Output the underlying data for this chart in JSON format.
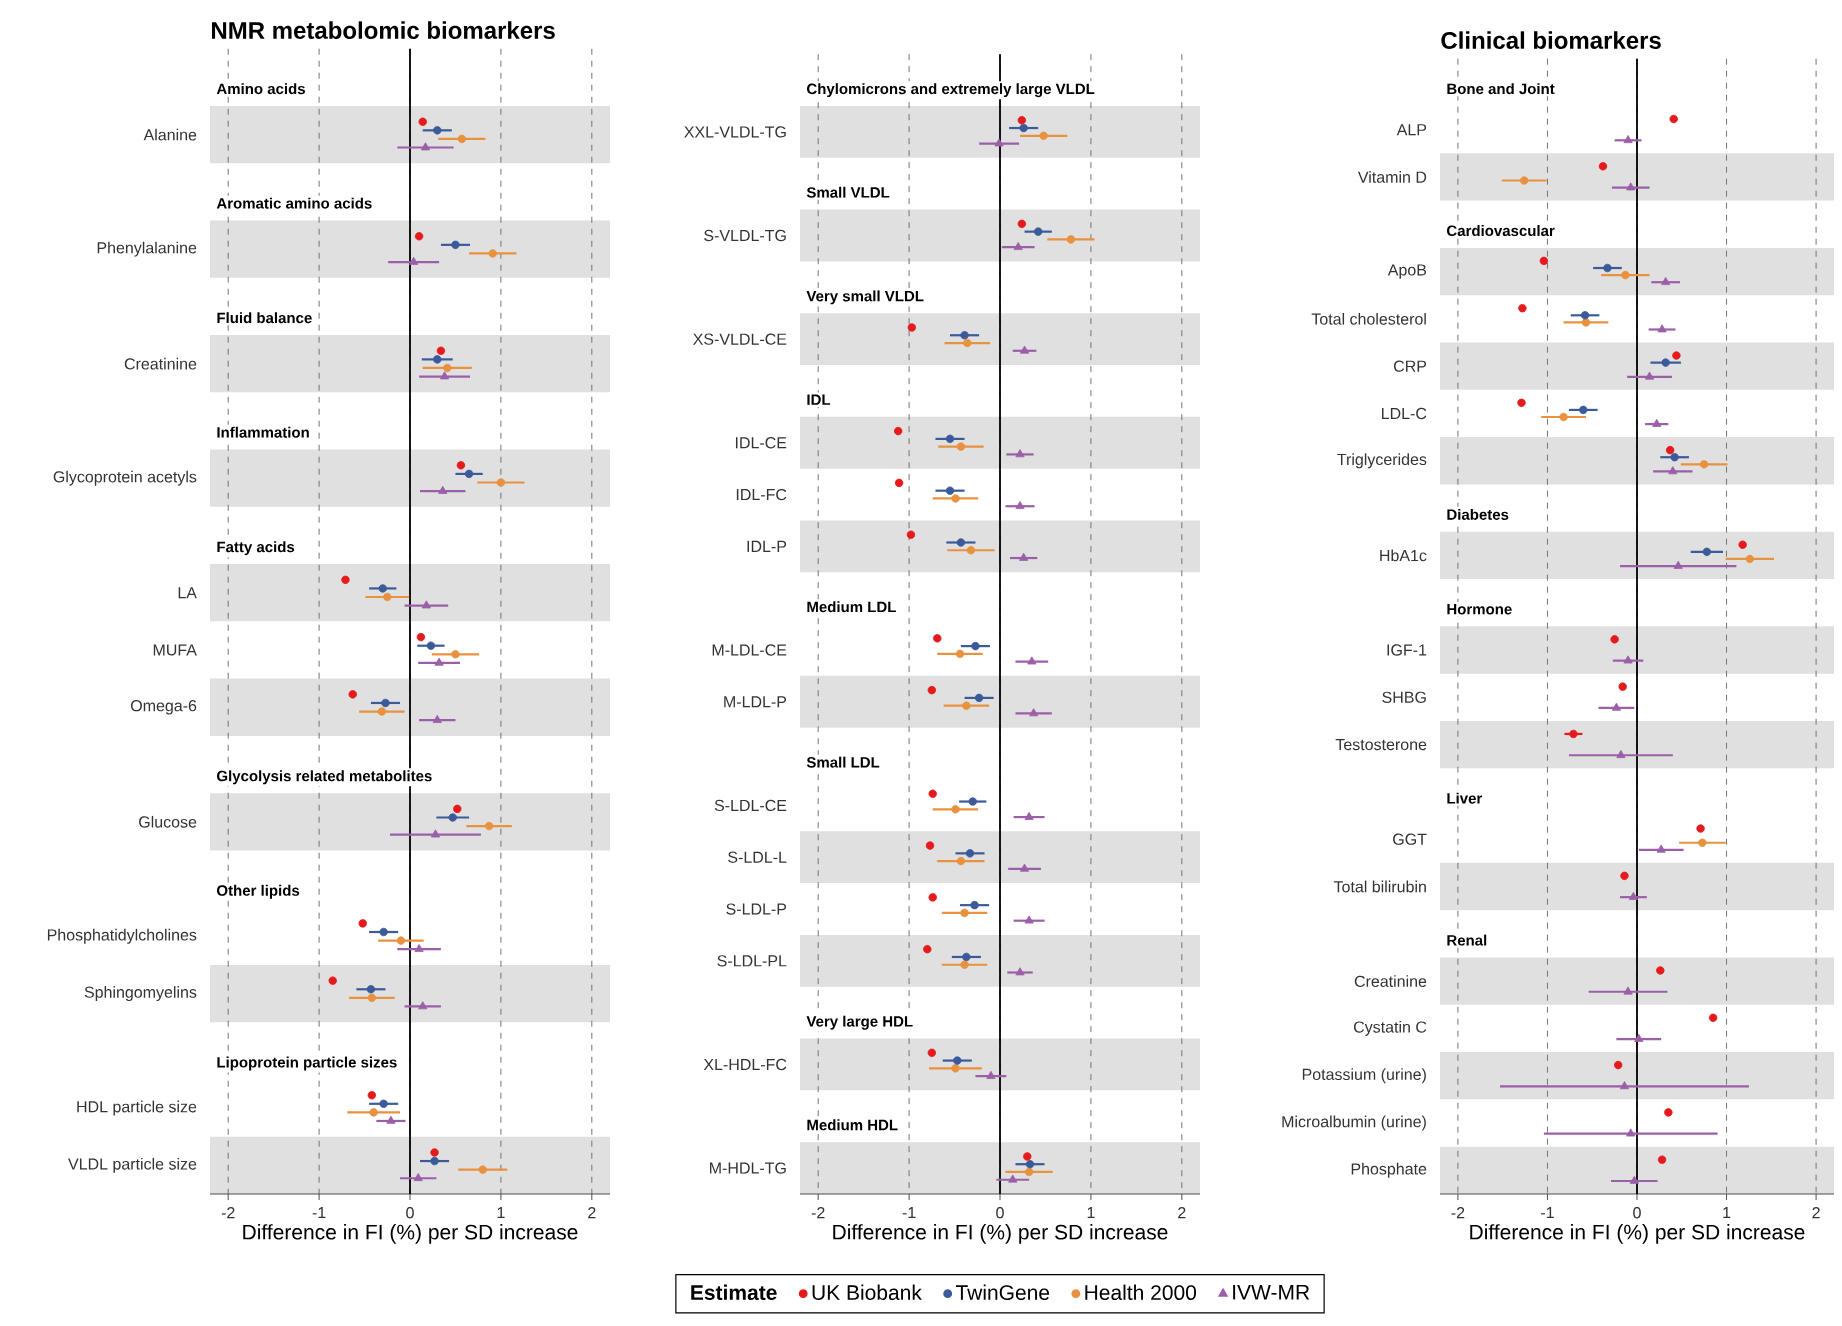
{
  "chart_data": [
    {
      "type": "scatter",
      "title": "NMR metabolomic biomarkers",
      "orientation": "horizontal",
      "categories": [
        null,
        "Alanine",
        null,
        "Phenylalanine",
        null,
        "Creatinine",
        null,
        "Glycoprotein acetyls",
        null,
        "LA",
        "MUFA",
        "Omega-6",
        null,
        "Glucose",
        null,
        "Phosphatidylcholines",
        "Sphingomyelins",
        null,
        "HDL particle size",
        "VLDL particle size"
      ],
      "annotations": [
        "Amino acids",
        "Aromatic amino acids",
        "Fluid balance",
        "Inflammation",
        "Fatty acids",
        "Glycolysis related metabolites",
        "Other lipids",
        "Lipoprotein particle sizes"
      ],
      "series": [
        {
          "color": "#e41a1c",
          "marker": "circle",
          "values": [
            null,
            0.14,
            null,
            0.1,
            null,
            0.34,
            null,
            0.56,
            null,
            -0.71,
            0.12,
            -0.63,
            null,
            0.52,
            null,
            -0.52,
            -0.85,
            null,
            -0.42,
            0.27
          ]
        },
        {
          "color": "#3b5a9a",
          "marker": "circle",
          "values": [
            null,
            0.3,
            null,
            0.5,
            null,
            0.3,
            null,
            0.65,
            null,
            -0.3,
            0.23,
            -0.27,
            null,
            0.47,
            null,
            -0.29,
            -0.43,
            null,
            -0.29,
            0.27
          ],
          "errors": [
            null,
            0.16,
            null,
            0.16,
            null,
            0.17,
            null,
            0.15,
            null,
            0.15,
            0.15,
            0.16,
            null,
            0.18,
            null,
            0.16,
            0.16,
            null,
            0.16,
            0.16
          ]
        },
        {
          "color": "#e8923f",
          "marker": "circle",
          "values": [
            null,
            0.57,
            null,
            0.91,
            null,
            0.41,
            null,
            1.0,
            null,
            -0.25,
            0.5,
            -0.31,
            null,
            0.87,
            null,
            -0.1,
            -0.42,
            null,
            -0.4,
            0.8
          ],
          "errors": [
            null,
            0.26,
            null,
            0.26,
            null,
            0.27,
            null,
            0.26,
            null,
            0.24,
            0.26,
            0.25,
            null,
            0.25,
            null,
            0.25,
            0.25,
            null,
            0.29,
            0.27
          ]
        },
        {
          "color": "#9b5fa8",
          "marker": "triangle",
          "values": [
            null,
            0.17,
            null,
            0.04,
            null,
            0.38,
            null,
            0.36,
            null,
            0.18,
            0.32,
            0.3,
            null,
            0.28,
            null,
            0.1,
            0.14,
            null,
            -0.21,
            0.09
          ],
          "errors": [
            null,
            0.31,
            null,
            0.28,
            null,
            0.28,
            null,
            0.25,
            null,
            0.24,
            0.23,
            0.2,
            null,
            0.5,
            null,
            0.24,
            0.2,
            null,
            0.16,
            0.2
          ]
        }
      ],
      "xlim": [
        -2.2,
        2.2
      ],
      "xticks": [
        -2,
        -1,
        0,
        1,
        2
      ],
      "grid": "x",
      "ref_lines": [
        {
          "axis": "x",
          "value": 0
        }
      ],
      "xlabel": "Difference in FI (%) per SD increase"
    },
    {
      "type": "scatter",
      "orientation": "horizontal",
      "categories": [
        null,
        "XXL-VLDL-TG",
        null,
        "S-VLDL-TG",
        null,
        "XS-VLDL-CE",
        null,
        "IDL-CE",
        "IDL-FC",
        "IDL-P",
        null,
        "M-LDL-CE",
        "M-LDL-P",
        null,
        "S-LDL-CE",
        "S-LDL-L",
        "S-LDL-P",
        "S-LDL-PL",
        null,
        "XL-HDL-FC",
        null,
        "M-HDL-TG"
      ],
      "annotations": [
        "Chylomicrons and extremely large VLDL",
        "Small VLDL",
        "Very small VLDL",
        "IDL",
        "Medium LDL",
        "Small LDL",
        "Very large HDL",
        "Medium HDL"
      ],
      "series": [
        {
          "name": "UK Biobank",
          "color": "#e41a1c",
          "marker": "circle",
          "values": [
            null,
            0.24,
            null,
            0.24,
            null,
            -0.97,
            null,
            -1.12,
            -1.11,
            -0.98,
            null,
            -0.69,
            -0.75,
            null,
            -0.74,
            -0.77,
            -0.74,
            -0.8,
            null,
            -0.75,
            null,
            0.3
          ]
        },
        {
          "name": "TwinGene",
          "color": "#3b5a9a",
          "marker": "circle",
          "values": [
            null,
            0.26,
            null,
            0.42,
            null,
            -0.39,
            null,
            -0.55,
            -0.55,
            -0.43,
            null,
            -0.27,
            -0.23,
            null,
            -0.3,
            -0.33,
            -0.28,
            -0.37,
            null,
            -0.47,
            null,
            0.33
          ],
          "errors": [
            null,
            0.16,
            null,
            0.15,
            null,
            0.16,
            null,
            0.16,
            0.16,
            0.16,
            null,
            0.16,
            0.16,
            null,
            0.15,
            0.16,
            0.16,
            0.16,
            null,
            0.16,
            null,
            0.16
          ]
        },
        {
          "name": "Health 2000",
          "color": "#e8923f",
          "marker": "circle",
          "values": [
            null,
            0.48,
            null,
            0.78,
            null,
            -0.36,
            null,
            -0.43,
            -0.49,
            -0.32,
            null,
            -0.44,
            -0.37,
            null,
            -0.49,
            -0.43,
            -0.39,
            -0.39,
            null,
            -0.49,
            null,
            0.32
          ],
          "errors": [
            null,
            0.26,
            null,
            0.26,
            null,
            0.25,
            null,
            0.25,
            0.25,
            0.26,
            null,
            0.25,
            0.25,
            null,
            0.25,
            0.26,
            0.25,
            0.25,
            null,
            0.29,
            null,
            0.26
          ]
        },
        {
          "name": "IVW-MR",
          "color": "#9b5fa8",
          "marker": "triangle",
          "values": [
            null,
            -0.01,
            null,
            0.2,
            null,
            0.27,
            null,
            0.22,
            0.22,
            0.26,
            null,
            0.35,
            0.37,
            null,
            0.32,
            0.27,
            0.32,
            0.22,
            null,
            -0.1,
            null,
            0.14
          ],
          "errors": [
            null,
            0.22,
            null,
            0.18,
            null,
            0.13,
            null,
            0.15,
            0.16,
            0.15,
            null,
            0.18,
            0.2,
            null,
            0.17,
            0.18,
            0.17,
            0.14,
            null,
            0.17,
            null,
            0.18
          ]
        }
      ],
      "xlim": [
        -2.2,
        2.2
      ],
      "xticks": [
        -2,
        -1,
        0,
        1,
        2
      ],
      "grid": "x",
      "ref_lines": [
        {
          "axis": "x",
          "value": 0
        }
      ],
      "xlabel": "Difference in FI (%) per SD increase",
      "legend": "bottom",
      "legend_title": "Estimate"
    },
    {
      "type": "scatter",
      "title": "Clinical biomarkers",
      "orientation": "horizontal",
      "categories": [
        null,
        "ALP",
        "Vitamin D",
        null,
        "ApoB",
        "Total cholesterol",
        "CRP",
        "LDL-C",
        "Triglycerides",
        null,
        "HbA1c",
        null,
        "IGF-1",
        "SHBG",
        "Testosterone",
        null,
        "GGT",
        "Total bilirubin",
        null,
        "Creatinine",
        "Cystatin C",
        "Potassium (urine)",
        "Microalbumin (urine)",
        "Phosphate"
      ],
      "annotations": [
        "Bone and Joint",
        "Cardiovascular",
        "Diabetes",
        "Hormone",
        "Liver",
        "Renal"
      ],
      "series": [
        {
          "color": "#e41a1c",
          "marker": "circle",
          "values": [
            null,
            0.41,
            -0.38,
            null,
            -1.04,
            -1.28,
            0.44,
            -1.29,
            0.37,
            null,
            1.18,
            null,
            -0.25,
            -0.16,
            -0.71,
            null,
            0.71,
            -0.14,
            null,
            0.26,
            0.85,
            -0.21,
            0.35,
            0.28
          ],
          "errors": [
            null,
            null,
            null,
            null,
            null,
            null,
            null,
            null,
            null,
            null,
            null,
            null,
            null,
            null,
            0.1,
            null,
            null,
            null,
            null,
            null,
            null,
            null,
            null,
            null
          ]
        },
        {
          "color": "#3b5a9a",
          "marker": "circle",
          "values": [
            null,
            null,
            null,
            null,
            -0.33,
            -0.58,
            0.32,
            -0.6,
            0.42,
            null,
            0.78,
            null,
            null,
            null,
            null,
            null,
            null,
            null,
            null,
            null,
            null,
            null,
            null,
            null
          ],
          "errors": [
            null,
            null,
            null,
            null,
            0.16,
            0.16,
            0.17,
            0.16,
            0.16,
            null,
            0.18,
            null,
            null,
            null,
            null,
            null,
            null,
            null,
            null,
            null,
            null,
            null,
            null,
            null
          ]
        },
        {
          "color": "#e8923f",
          "marker": "circle",
          "values": [
            null,
            null,
            -1.26,
            null,
            -0.13,
            -0.57,
            null,
            -0.82,
            0.75,
            null,
            1.26,
            null,
            null,
            null,
            null,
            null,
            0.73,
            null,
            null,
            null,
            null,
            null,
            null,
            null
          ],
          "errors": [
            null,
            null,
            0.25,
            null,
            0.27,
            0.25,
            null,
            0.25,
            0.26,
            null,
            0.27,
            null,
            null,
            null,
            null,
            null,
            0.26,
            null,
            null,
            null,
            null,
            null,
            null,
            null
          ]
        },
        {
          "color": "#9b5fa8",
          "marker": "triangle",
          "values": [
            null,
            -0.1,
            -0.07,
            null,
            0.32,
            0.28,
            0.14,
            0.22,
            0.4,
            null,
            0.46,
            null,
            -0.1,
            -0.23,
            -0.18,
            null,
            0.27,
            -0.04,
            null,
            -0.1,
            0.02,
            -0.14,
            -0.07,
            -0.03
          ],
          "errors": [
            null,
            0.15,
            0.21,
            null,
            0.16,
            0.15,
            0.25,
            0.13,
            0.22,
            null,
            0.65,
            null,
            0.17,
            0.2,
            0.58,
            null,
            0.25,
            0.15,
            null,
            0.44,
            0.25,
            1.39,
            0.97,
            0.26
          ]
        }
      ],
      "xlim": [
        -2.2,
        2.2
      ],
      "xticks": [
        -2,
        -1,
        0,
        1,
        2
      ],
      "grid": "x",
      "ref_lines": [
        {
          "axis": "x",
          "value": 0
        }
      ],
      "xlabel": "Difference in FI (%) per SD increase"
    }
  ]
}
